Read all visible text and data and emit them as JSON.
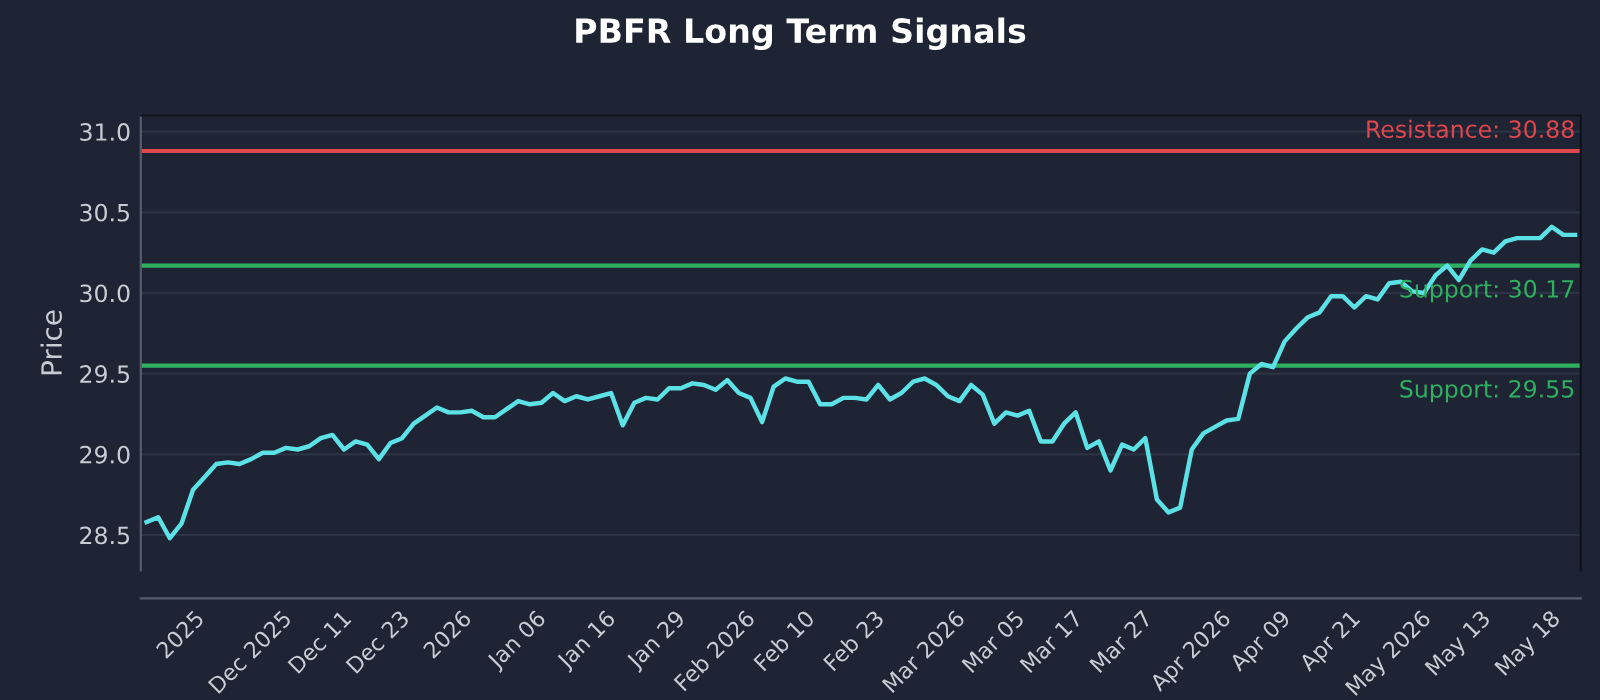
{
  "chart_data": {
    "type": "line",
    "title": "PBFR Long Term Signals",
    "ylabel": "Price",
    "categories": [
      null,
      null,
      null,
      "2025",
      null,
      null,
      null,
      null,
      null,
      "Dec 2025",
      null,
      null,
      null,
      null,
      null,
      "Dec 11",
      null,
      null,
      null,
      null,
      "Dec 23",
      null,
      null,
      null,
      null,
      null,
      "2026",
      null,
      null,
      null,
      null,
      null,
      "Jan 06",
      null,
      null,
      null,
      null,
      null,
      "Jan 16",
      null,
      null,
      null,
      null,
      null,
      "Jan 29",
      null,
      null,
      null,
      null,
      "Feb 2026",
      null,
      null,
      null,
      null,
      null,
      "Feb 10",
      null,
      null,
      null,
      null,
      null,
      "Feb 23",
      null,
      null,
      null,
      null,
      null,
      "Mar 2026",
      null,
      null,
      null,
      null,
      null,
      "Mar 05",
      null,
      null,
      null,
      null,
      "Mar 17",
      null,
      null,
      null,
      null,
      null,
      "Mar 27",
      null,
      null,
      null,
      null,
      null,
      "Apr 2026",
      null,
      null,
      null,
      null,
      null,
      "Apr 09",
      null,
      null,
      null,
      null,
      null,
      "Apr 21",
      null,
      null,
      null,
      null,
      "May 2026",
      null,
      null,
      null,
      null,
      null,
      "May 13",
      null,
      null,
      null,
      null,
      null,
      "May 18",
      null,
      null,
      null,
      null
    ],
    "series": [
      {
        "color": "#5ce1e6",
        "values": [
          28.58,
          28.61,
          28.48,
          28.57,
          28.78,
          28.86,
          28.94,
          28.95,
          28.94,
          28.97,
          29.01,
          29.01,
          29.04,
          29.03,
          29.05,
          29.1,
          29.12,
          29.03,
          29.08,
          29.06,
          28.97,
          29.07,
          29.1,
          29.19,
          29.24,
          29.29,
          29.26,
          29.26,
          29.27,
          29.23,
          29.23,
          29.28,
          29.33,
          29.31,
          29.32,
          29.38,
          29.33,
          29.36,
          29.34,
          29.36,
          29.38,
          29.18,
          29.32,
          29.35,
          29.34,
          29.41,
          29.41,
          29.44,
          29.43,
          29.4,
          29.46,
          29.38,
          29.35,
          29.2,
          29.42,
          29.47,
          29.45,
          29.45,
          29.31,
          29.31,
          29.35,
          29.35,
          29.34,
          29.43,
          29.34,
          29.38,
          29.45,
          29.47,
          29.43,
          29.36,
          29.33,
          29.43,
          29.37,
          29.19,
          29.26,
          29.24,
          29.27,
          29.08,
          29.08,
          29.19,
          29.26,
          29.04,
          29.08,
          28.9,
          29.06,
          29.03,
          29.1,
          28.72,
          28.64,
          28.67,
          29.03,
          29.13,
          29.17,
          29.21,
          29.22,
          29.5,
          29.56,
          29.54,
          29.7,
          29.78,
          29.85,
          29.88,
          29.98,
          29.98,
          29.91,
          29.98,
          29.96,
          30.06,
          30.07,
          30.01,
          30.0,
          30.11,
          30.17,
          30.08,
          30.2,
          30.27,
          30.25,
          30.32,
          30.34,
          30.34,
          30.34,
          30.41,
          30.36,
          30.36
        ]
      }
    ],
    "ylim": [
      28.28,
      31.1
    ],
    "yticks": [
      28.5,
      {
        "value": 29,
        "label": "29.0"
      },
      29.5,
      {
        "value": 30,
        "label": "30.0"
      },
      30.5,
      {
        "value": 31,
        "label": "31.0"
      }
    ],
    "grid": "y",
    "legend": false,
    "marker": "none",
    "line_style": "solid",
    "ref_lines": [
      {
        "axis": "y",
        "value": 30.88,
        "label": "Resistance: 30.88",
        "color": "#e0464e"
      },
      {
        "axis": "y",
        "value": 30.17,
        "label": "Support: 30.17",
        "color": "#2fb060"
      },
      {
        "axis": "y",
        "value": 29.55,
        "label": "Support: 29.55",
        "color": "#2fb060"
      }
    ]
  }
}
